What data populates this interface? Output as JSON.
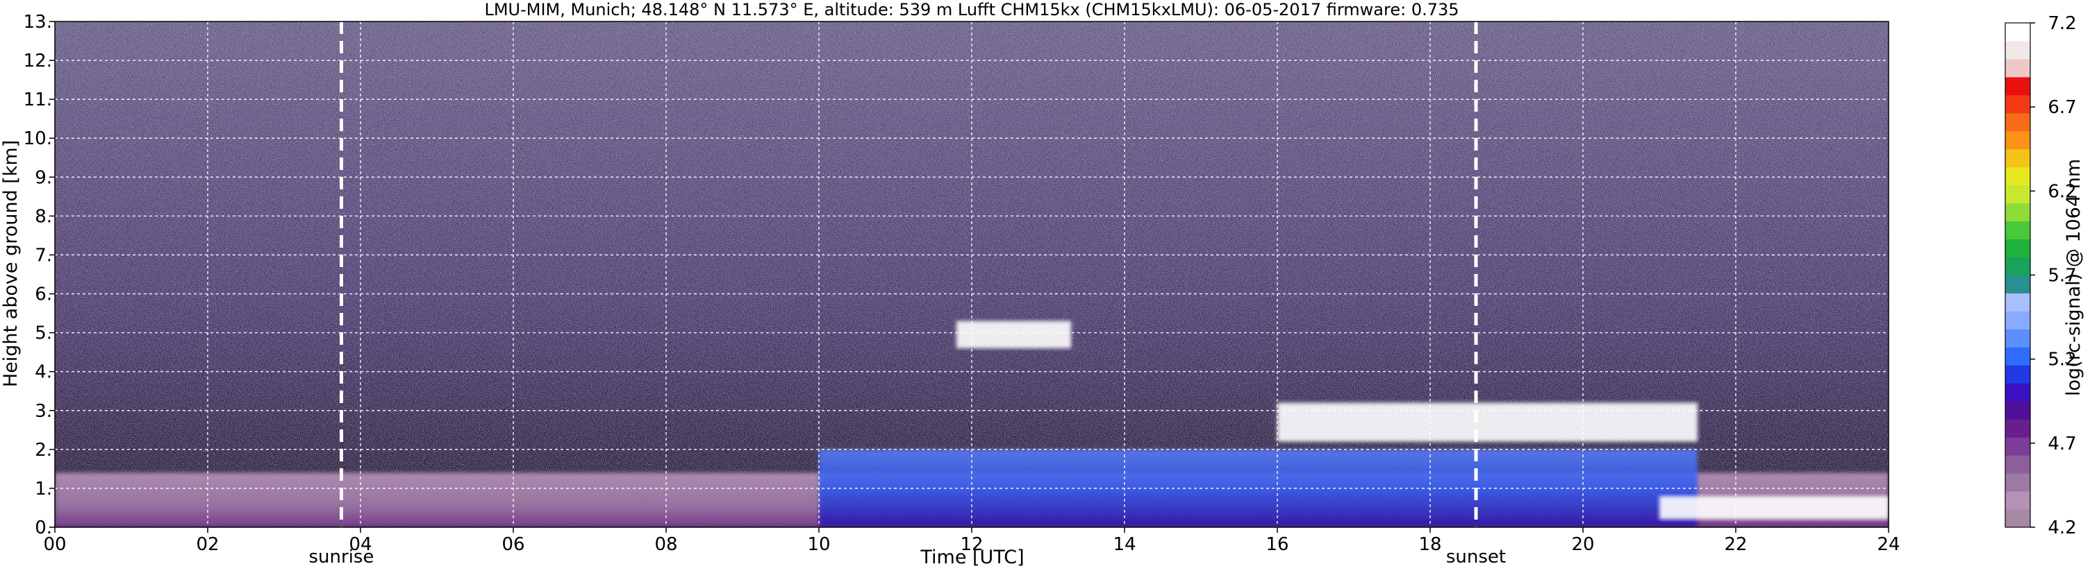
{
  "chart_data": {
    "type": "heatmap",
    "title": "LMU-MIM, Munich; 48.148° N 11.573° E, altitude: 539 m    Lufft CHM15kx (CHM15kxLMU): 06-05-2017    firmware: 0.735",
    "xlabel": "Time [UTC]",
    "ylabel": "Height above ground [km]",
    "xlim": [
      0,
      24
    ],
    "ylim": [
      0,
      13
    ],
    "x_ticks": [
      "00",
      "02",
      "04",
      "06",
      "08",
      "10",
      "12",
      "14",
      "16",
      "18",
      "20",
      "22",
      "24"
    ],
    "x_tick_values": [
      0,
      2,
      4,
      6,
      8,
      10,
      12,
      14,
      16,
      18,
      20,
      22,
      24
    ],
    "y_ticks": [
      "0.",
      "1.",
      "2.",
      "3.",
      "4.",
      "5.",
      "6.",
      "7.",
      "8.",
      "9.",
      "10.",
      "11.",
      "12.",
      "13."
    ],
    "y_tick_values": [
      0,
      1,
      2,
      3,
      4,
      5,
      6,
      7,
      8,
      9,
      10,
      11,
      12,
      13
    ],
    "grid": true,
    "annotations": [
      {
        "label": "sunrise",
        "x": 3.75
      },
      {
        "label": "sunset",
        "x": 18.6
      }
    ],
    "colorbar": {
      "label": "log(rc-signal) @ 1064 nm",
      "range": [
        4.2,
        7.2
      ],
      "ticks": [
        "4.2",
        "4.7",
        "5.2",
        "5.7",
        "6.2",
        "6.7",
        "7.2"
      ],
      "tick_values": [
        4.2,
        4.7,
        5.2,
        5.7,
        6.2,
        6.7,
        7.2
      ],
      "colors": [
        "#a889a4",
        "#b892b4",
        "#9b7aa3",
        "#8c5e9c",
        "#7d3c95",
        "#6a1d8d",
        "#4e0f99",
        "#3a10c2",
        "#2038e6",
        "#2f6bff",
        "#5d8eff",
        "#88aaff",
        "#a9c0ff",
        "#2a8f8f",
        "#19a35a",
        "#1fb23a",
        "#49c83a",
        "#8fdc38",
        "#c8e830",
        "#e8e820",
        "#f6c21a",
        "#fa9318",
        "#f86a17",
        "#f23a14",
        "#e81010",
        "#f0c8c8",
        "#f3e8e8",
        "#ffffff"
      ]
    },
    "features": [
      {
        "type": "aerosol_layer",
        "x": [
          0,
          24
        ],
        "y": [
          0,
          1.4
        ]
      },
      {
        "type": "boundary_layer",
        "x": [
          10,
          21.5
        ],
        "y": [
          0,
          2
        ]
      },
      {
        "type": "cloud_deck",
        "x": [
          11.8,
          13.3
        ],
        "y": [
          4.6,
          5.3
        ]
      },
      {
        "type": "cloud_deck",
        "x": [
          16,
          21.5
        ],
        "y": [
          2.2,
          3.2
        ]
      },
      {
        "type": "cloud_deck",
        "x": [
          21,
          24
        ],
        "y": [
          0.2,
          0.8
        ]
      }
    ]
  }
}
